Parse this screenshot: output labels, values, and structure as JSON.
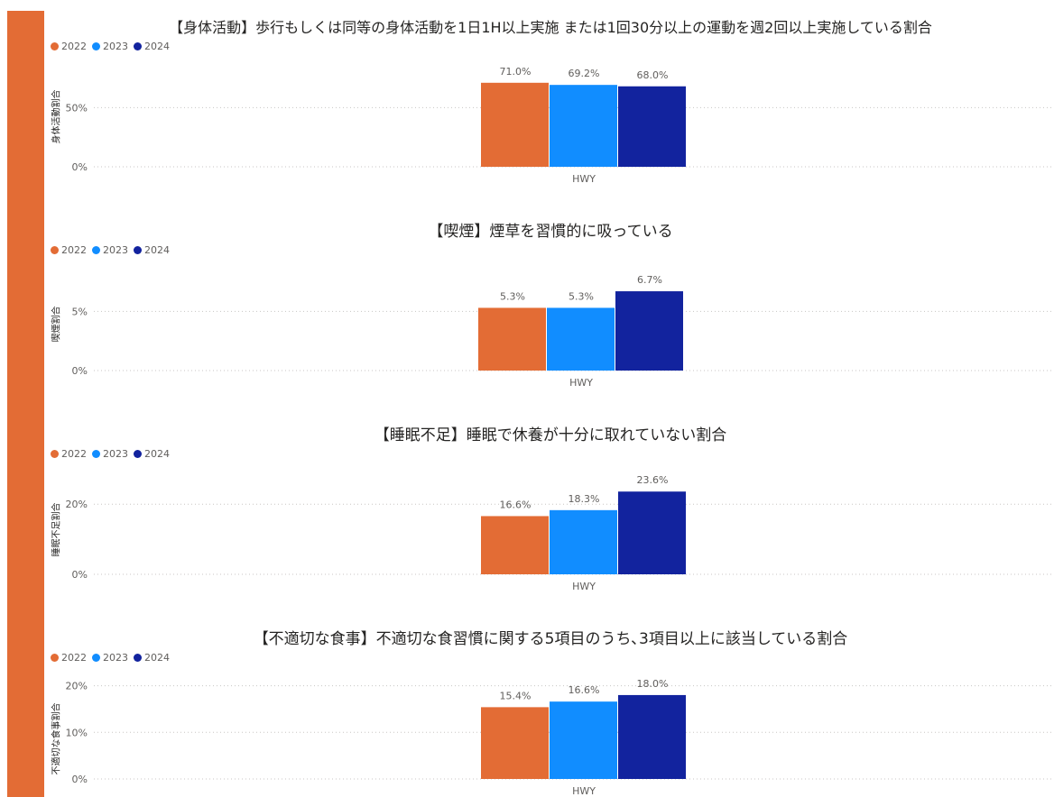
{
  "colors": {
    "accent": "#E36C35",
    "2022": "#E36C35",
    "2023": "#118DFF",
    "2024": "#12239E"
  },
  "legend": [
    "2022",
    "2023",
    "2024"
  ],
  "chart_data": [
    {
      "type": "bar",
      "title": "【身体活動】歩行もしくは同等の身体活動を1日1H以上実施 または1回30分以上の運動を週2回以上実施している割合",
      "ylabel": "身体活動割合",
      "categories": [
        "HWY"
      ],
      "series": [
        {
          "name": "2022",
          "values": [
            71.0
          ]
        },
        {
          "name": "2023",
          "values": [
            69.2
          ]
        },
        {
          "name": "2024",
          "values": [
            68.0
          ]
        }
      ],
      "data_labels": [
        "71.0%",
        "69.2%",
        "68.0%"
      ],
      "yticks": [
        0,
        50
      ],
      "ytick_labels": [
        "0%",
        "50%"
      ],
      "ylim": [
        0,
        80
      ],
      "grid": true
    },
    {
      "type": "bar",
      "title": "【喫煙】煙草を習慣的に吸っている",
      "ylabel": "喫煙割合",
      "categories": [
        "HWY"
      ],
      "series": [
        {
          "name": "2022",
          "values": [
            5.3
          ]
        },
        {
          "name": "2023",
          "values": [
            5.3
          ]
        },
        {
          "name": "2024",
          "values": [
            6.7
          ]
        }
      ],
      "data_labels": [
        "5.3%",
        "5.3%",
        "6.7%"
      ],
      "yticks": [
        0,
        5
      ],
      "ytick_labels": [
        "0%",
        "5%"
      ],
      "ylim": [
        0,
        8
      ],
      "grid": true
    },
    {
      "type": "bar",
      "title": "【睡眠不足】睡眠で休養が十分に取れていない割合",
      "ylabel": "睡眠不足割合",
      "categories": [
        "HWY"
      ],
      "series": [
        {
          "name": "2022",
          "values": [
            16.6
          ]
        },
        {
          "name": "2023",
          "values": [
            18.3
          ]
        },
        {
          "name": "2024",
          "values": [
            23.6
          ]
        }
      ],
      "data_labels": [
        "16.6%",
        "18.3%",
        "23.6%"
      ],
      "yticks": [
        0,
        20
      ],
      "ytick_labels": [
        "0%",
        "20%"
      ],
      "ylim": [
        0,
        27
      ],
      "grid": true
    },
    {
      "type": "bar",
      "title": "【不適切な食事】不適切な食習慣に関する5項目のうち､3項目以上に該当している割合",
      "ylabel": "不適切な食事割合",
      "categories": [
        "HWY"
      ],
      "series": [
        {
          "name": "2022",
          "values": [
            15.4
          ]
        },
        {
          "name": "2023",
          "values": [
            16.6
          ]
        },
        {
          "name": "2024",
          "values": [
            18.0
          ]
        }
      ],
      "data_labels": [
        "15.4%",
        "16.6%",
        "18.0%"
      ],
      "yticks": [
        0,
        10,
        20
      ],
      "ytick_labels": [
        "0%",
        "10%",
        "20%"
      ],
      "ylim": [
        0,
        20.5
      ],
      "grid": true
    }
  ]
}
